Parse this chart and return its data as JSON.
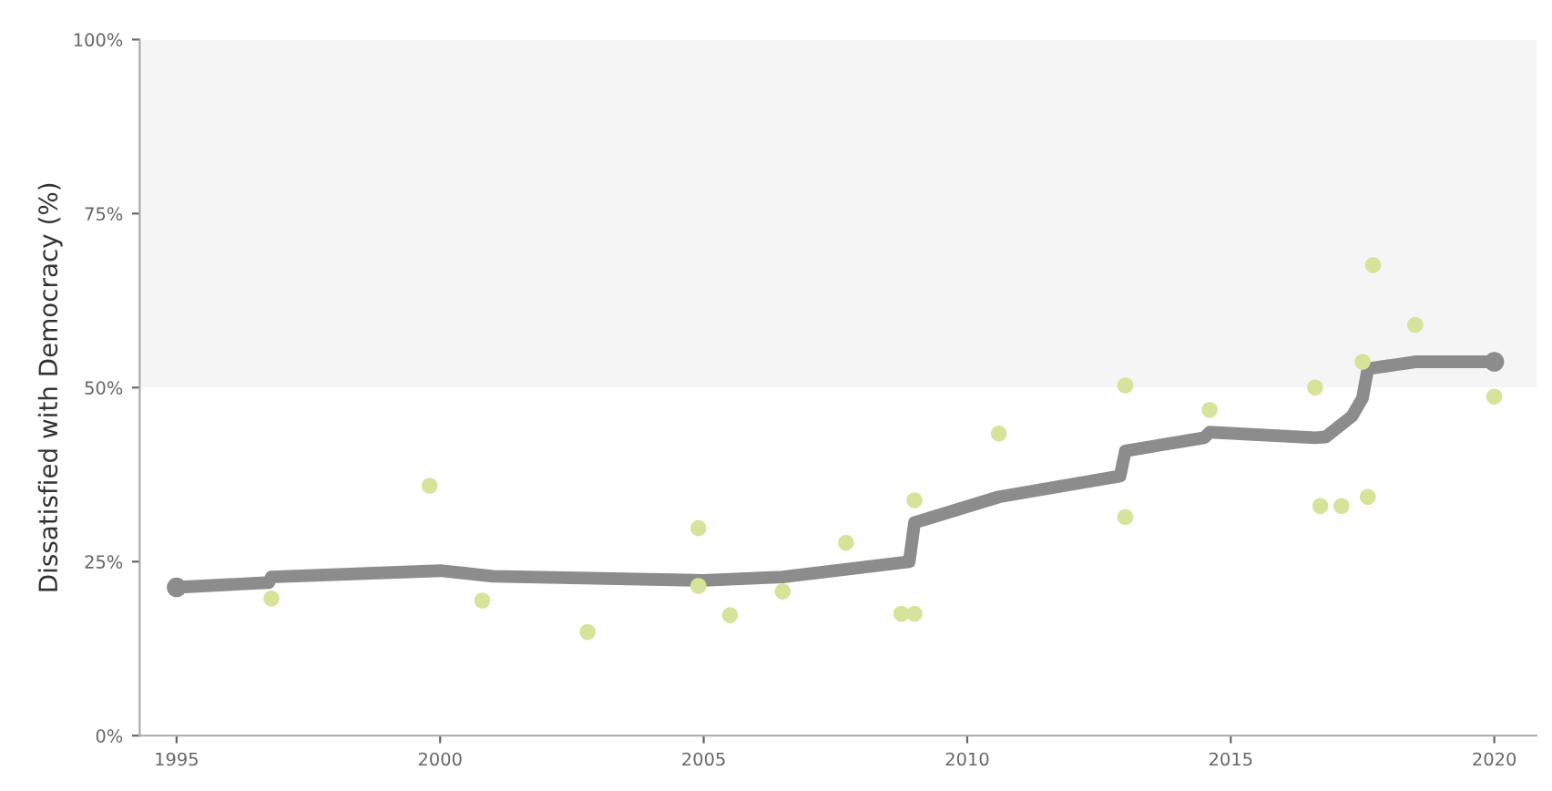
{
  "chart_data": {
    "type": "line",
    "ylabel": "Dissatisfied with Democracy (%)",
    "xlim": [
      1994.3,
      2020.8
    ],
    "xticks": [
      1995,
      2000,
      2005,
      2010,
      2015,
      2020
    ],
    "ylim": [
      0,
      100
    ],
    "yticks": [
      {
        "value": 0,
        "label": "0%"
      },
      {
        "value": 25,
        "label": "25%"
      },
      {
        "value": 50,
        "label": "50%"
      },
      {
        "value": 75,
        "label": "75%"
      },
      {
        "value": 100,
        "label": "100%"
      }
    ],
    "grid": false,
    "bands": [
      {
        "axis": "y",
        "from": 50,
        "to": 100,
        "color": "#f5f5f5"
      }
    ],
    "series": [
      {
        "color": "#8c8c8c",
        "x": [
          1995.0,
          1996.75,
          1996.8,
          2000.0,
          2001.0,
          2005.0,
          2006.5,
          2008.9,
          2009.0,
          2010.6,
          2012.9,
          2013.0,
          2014.5,
          2014.6,
          2016.6,
          2016.8,
          2017.3,
          2017.5,
          2017.6,
          2018.5,
          2020.0
        ],
        "values": [
          21.3,
          22.0,
          22.8,
          23.7,
          22.9,
          22.3,
          22.8,
          25.0,
          30.6,
          34.3,
          37.3,
          40.9,
          42.8,
          43.6,
          42.8,
          42.9,
          45.9,
          48.5,
          52.7,
          53.7,
          53.7
        ]
      },
      {
        "type": "scatter",
        "color": "#8c8c8c",
        "x": [
          1995.0,
          2020.0
        ],
        "values": [
          21.3,
          53.7
        ]
      },
      {
        "type": "scatter",
        "color": "#d6e39a",
        "x": [
          1996.8,
          1999.8,
          2000.8,
          2002.8,
          2004.9,
          2004.9,
          2005.5,
          2006.5,
          2007.7,
          2008.75,
          2009.0,
          2009.0,
          2010.6,
          2013.0,
          2013.0,
          2014.6,
          2016.6,
          2016.7,
          2017.1,
          2017.5,
          2017.6,
          2017.7,
          2018.5,
          2020.0
        ],
        "values": [
          19.7,
          35.9,
          19.4,
          14.9,
          29.8,
          21.5,
          17.3,
          20.7,
          27.7,
          17.5,
          17.5,
          33.8,
          43.4,
          50.3,
          31.4,
          46.8,
          50.0,
          33.0,
          33.0,
          53.7,
          34.3,
          67.6,
          59.0,
          48.7
        ]
      }
    ]
  }
}
